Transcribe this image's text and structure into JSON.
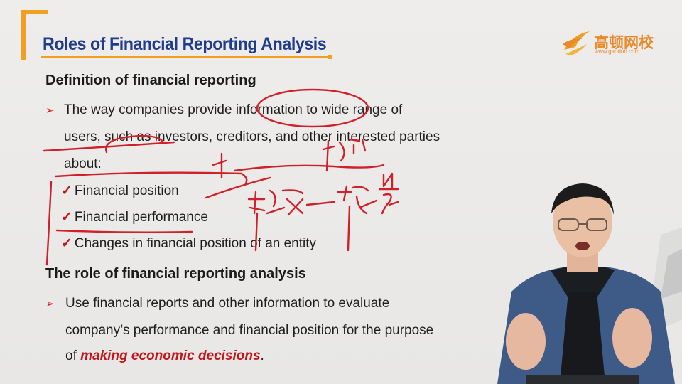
{
  "slide": {
    "title": "Roles of Financial Reporting Analysis",
    "logo": {
      "brand": "高顿网校",
      "url": "www.gaodun.com"
    },
    "section1": {
      "heading": "Definition of financial reporting",
      "bullet_line1": "The way companies provide information to wide range of",
      "bullet_line2": "users, such as investors, creditors, and other interested parties",
      "bullet_line3": "about:",
      "checks": [
        "Financial position",
        "Financial performance",
        "Changes in financial position of an entity"
      ]
    },
    "section2": {
      "heading": "The role of financial reporting analysis",
      "bullet_line1": "Use financial reports and other information to evaluate",
      "bullet_line2": "company’s performance and financial position for the purpose",
      "bullet_line3_pre": "of ",
      "bullet_line3_em": "making economic decisions",
      "bullet_line3_post": "."
    }
  },
  "colors": {
    "title": "#1f3c8f",
    "accent": "#f0a020",
    "bullet": "#d81e1e",
    "ink": "#d0202a"
  },
  "icons": {
    "bullet": "right-arrow-icon",
    "check": "check-icon"
  }
}
